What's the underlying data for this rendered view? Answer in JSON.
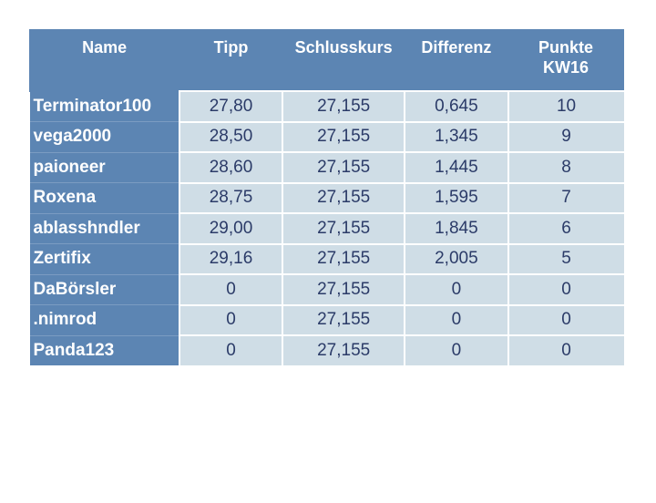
{
  "headers": [
    "Name",
    "Tipp",
    "Schlusskurs",
    "Differenz",
    "Punkte KW16"
  ],
  "rows": [
    [
      "Terminator100",
      "27,80",
      "27,155",
      "0,645",
      "10"
    ],
    [
      "vega2000",
      "28,50",
      "27,155",
      "1,345",
      "9"
    ],
    [
      "paioneer",
      "28,60",
      "27,155",
      "1,445",
      "8"
    ],
    [
      "Roxena",
      "28,75",
      "27,155",
      "1,595",
      "7"
    ],
    [
      "ablasshndler",
      "29,00",
      "27,155",
      "1,845",
      "6"
    ],
    [
      "Zertifix",
      "29,16",
      "27,155",
      "2,005",
      "5"
    ],
    [
      "DaBörsler",
      "0",
      "27,155",
      "0",
      "0"
    ],
    [
      ".nimrod",
      "0",
      "27,155",
      "0",
      "0"
    ],
    [
      "Panda123",
      "0",
      "27,155",
      "0",
      "0"
    ]
  ],
  "colors": {
    "header": "#5c85b3",
    "cell": "#cfdde6",
    "text": "#2b3b68"
  }
}
